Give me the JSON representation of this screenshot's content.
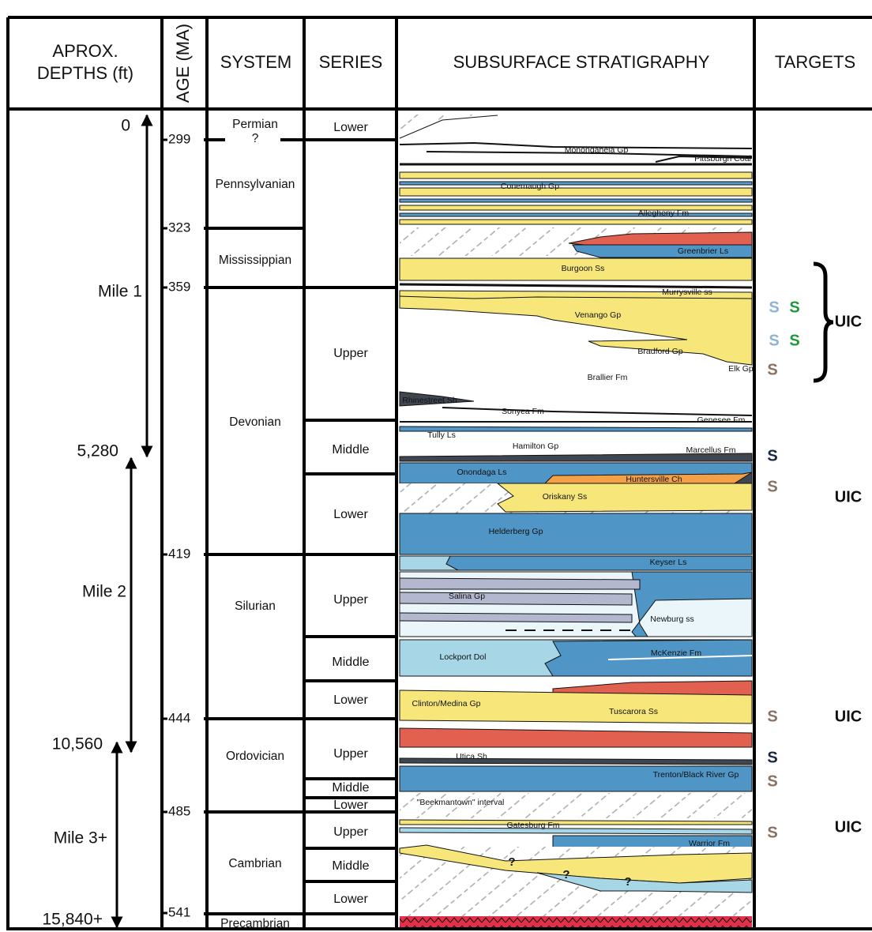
{
  "header": {
    "depths": [
      "APROX.",
      "DEPTHS (ft)"
    ],
    "age": "AGE (MA)",
    "system": "SYSTEM",
    "series": "SERIES",
    "stratigraphy": "SUBSURFACE STRATIGRAPHY",
    "targets": "TARGETS"
  },
  "depths": [
    "0",
    "Mile 1",
    "5,280",
    "Mile 2",
    "10,560",
    "Mile 3+",
    "15,840+"
  ],
  "ages": [
    299,
    323,
    359,
    419,
    444,
    485,
    541
  ],
  "systems": [
    "Permian",
    "?",
    "Pennsylvanian",
    "Mississippian",
    "Devonian",
    "Silurian",
    "Ordovician",
    "Cambrian",
    "Precambrian"
  ],
  "series": [
    "Lower",
    "Upper",
    "Middle",
    "Lower",
    "Upper",
    "Middle",
    "Lower",
    "Upper",
    "Middle",
    "Lower",
    "Upper",
    "Middle",
    "Lower"
  ],
  "units": [
    "Monongahela Gp",
    "Pittsburgh Coal",
    "Conemaugh Gp",
    "Allegheny Fm",
    "Greenbrier Ls",
    "Burgoon Ss",
    "Murrysville ss",
    "Venango Gp",
    "Bradford Gp",
    "Elk Gp",
    "Brallier Fm",
    "Rhinestreet Sh",
    "Sonyea Fm",
    "Genesee Fm",
    "Tully Ls",
    "Hamilton Gp",
    "Marcellus Fm",
    "Onondaga Ls",
    "Huntersville Ch",
    "Oriskany Ss",
    "Helderberg Gp",
    "Keyser Ls",
    "Salina Gp",
    "Newburg ss",
    "Lockport Dol",
    "McKenzie Fm",
    "Clinton/Medina Gp",
    "Tuscarora Ss",
    "Utica Sh",
    "Trenton/Black River Gp",
    "\"Beekmantown\" interval",
    "Gatesburg Fm",
    "Warrior Fm",
    "?",
    "?",
    "?"
  ],
  "targets": {
    "marks": [
      {
        "label": "S",
        "color": "#8fb3d6"
      },
      {
        "label": "S",
        "color": "#1e9a3c"
      },
      {
        "label": "S",
        "color": "#8fb3d6"
      },
      {
        "label": "S",
        "color": "#1e9a3c"
      },
      {
        "label": "S",
        "color": "#8a7262"
      },
      {
        "label": "S",
        "color": "#1c2747"
      },
      {
        "label": "S",
        "color": "#8a7262"
      },
      {
        "label": "S",
        "color": "#8a7262"
      },
      {
        "label": "S",
        "color": "#1c2747"
      },
      {
        "label": "S",
        "color": "#8a7262"
      },
      {
        "label": "S",
        "color": "#8a7262"
      }
    ],
    "uic": [
      "UIC",
      "UIC",
      "UIC",
      "UIC"
    ]
  }
}
